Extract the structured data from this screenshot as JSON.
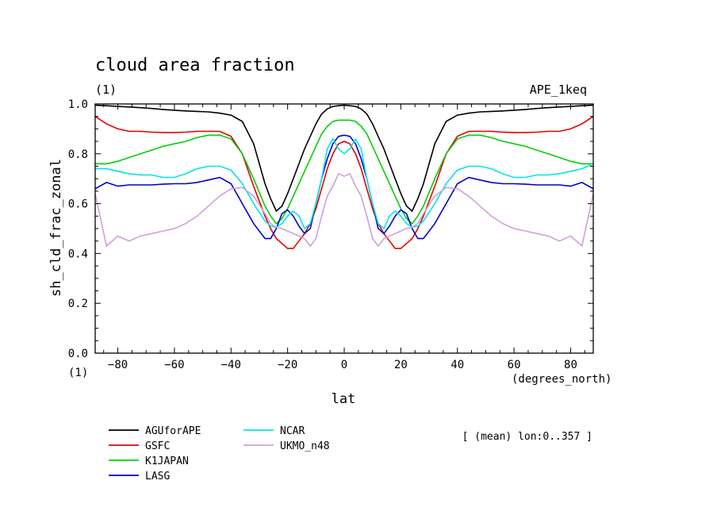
{
  "chart_data": {
    "type": "line",
    "title": "cloud area fraction",
    "units_label": "(1)",
    "experiment": "APE_1keq",
    "xlabel": "lat",
    "x_units": "(degrees_north)",
    "ylabel": "sh_cld_frac_zonal",
    "y_units": "(1)",
    "note": "[ (mean) lon:0..357 ]",
    "xlim": [
      -88,
      88
    ],
    "ylim": [
      0,
      1
    ],
    "x_ticks": [
      -80,
      -60,
      -40,
      -20,
      0,
      20,
      40,
      60,
      80
    ],
    "x_tick_labels": [
      "−80",
      "−60",
      "−40",
      "−20",
      "0",
      "20",
      "40",
      "60",
      "80"
    ],
    "y_ticks": [
      0,
      0.2,
      0.4,
      0.6,
      0.8,
      1.0
    ],
    "y_tick_labels": [
      "0.0",
      "0.2",
      "0.4",
      "0.6",
      "0.8",
      "1.0"
    ],
    "x": [
      -88,
      -84,
      -80,
      -76,
      -72,
      -68,
      -64,
      -60,
      -56,
      -52,
      -48,
      -44,
      -40,
      -36,
      -32,
      -28,
      -26,
      -24,
      -22,
      -20,
      -18,
      -16,
      -14,
      -12,
      -10,
      -8,
      -6,
      -4,
      -2,
      0,
      2,
      4,
      6,
      8,
      10,
      12,
      14,
      16,
      18,
      20,
      22,
      24,
      26,
      28,
      32,
      36,
      40,
      44,
      48,
      52,
      56,
      60,
      64,
      68,
      72,
      76,
      80,
      84,
      88
    ],
    "series": [
      {
        "name": "AGUforAPE",
        "color": "#000000",
        "values": [
          0.995,
          0.993,
          0.99,
          0.988,
          0.985,
          0.982,
          0.978,
          0.975,
          0.972,
          0.97,
          0.968,
          0.963,
          0.955,
          0.93,
          0.84,
          0.68,
          0.62,
          0.57,
          0.59,
          0.64,
          0.7,
          0.76,
          0.82,
          0.87,
          0.92,
          0.96,
          0.98,
          0.99,
          0.993,
          0.995,
          0.993,
          0.99,
          0.98,
          0.96,
          0.92,
          0.87,
          0.82,
          0.76,
          0.7,
          0.64,
          0.59,
          0.57,
          0.62,
          0.68,
          0.84,
          0.93,
          0.955,
          0.963,
          0.968,
          0.97,
          0.972,
          0.975,
          0.978,
          0.982,
          0.985,
          0.988,
          0.99,
          0.993,
          0.995
        ]
      },
      {
        "name": "GSFC",
        "color": "#e00000",
        "values": [
          0.95,
          0.92,
          0.9,
          0.89,
          0.89,
          0.887,
          0.885,
          0.885,
          0.887,
          0.89,
          0.89,
          0.89,
          0.87,
          0.8,
          0.67,
          0.55,
          0.5,
          0.46,
          0.44,
          0.42,
          0.42,
          0.45,
          0.48,
          0.52,
          0.58,
          0.66,
          0.74,
          0.8,
          0.84,
          0.85,
          0.84,
          0.8,
          0.74,
          0.66,
          0.58,
          0.52,
          0.48,
          0.45,
          0.42,
          0.42,
          0.44,
          0.46,
          0.5,
          0.55,
          0.67,
          0.8,
          0.87,
          0.89,
          0.89,
          0.89,
          0.887,
          0.885,
          0.885,
          0.887,
          0.89,
          0.89,
          0.9,
          0.92,
          0.95
        ]
      },
      {
        "name": "K1JAPAN",
        "color": "#00d000",
        "values": [
          0.76,
          0.76,
          0.77,
          0.785,
          0.8,
          0.815,
          0.83,
          0.84,
          0.85,
          0.865,
          0.875,
          0.875,
          0.86,
          0.8,
          0.7,
          0.59,
          0.55,
          0.52,
          0.54,
          0.58,
          0.63,
          0.68,
          0.73,
          0.78,
          0.83,
          0.88,
          0.91,
          0.93,
          0.935,
          0.935,
          0.935,
          0.93,
          0.91,
          0.88,
          0.83,
          0.78,
          0.73,
          0.68,
          0.63,
          0.58,
          0.54,
          0.52,
          0.55,
          0.59,
          0.7,
          0.8,
          0.86,
          0.875,
          0.875,
          0.865,
          0.85,
          0.84,
          0.83,
          0.815,
          0.8,
          0.785,
          0.77,
          0.76,
          0.76
        ]
      },
      {
        "name": "LASG",
        "color": "#0000d0",
        "values": [
          0.66,
          0.685,
          0.67,
          0.675,
          0.675,
          0.675,
          0.678,
          0.68,
          0.68,
          0.685,
          0.695,
          0.705,
          0.68,
          0.6,
          0.52,
          0.46,
          0.46,
          0.5,
          0.56,
          0.575,
          0.55,
          0.51,
          0.48,
          0.5,
          0.6,
          0.7,
          0.78,
          0.84,
          0.87,
          0.875,
          0.87,
          0.84,
          0.78,
          0.7,
          0.6,
          0.5,
          0.48,
          0.51,
          0.55,
          0.575,
          0.56,
          0.5,
          0.46,
          0.46,
          0.52,
          0.6,
          0.68,
          0.705,
          0.695,
          0.685,
          0.68,
          0.68,
          0.678,
          0.675,
          0.675,
          0.675,
          0.67,
          0.685,
          0.66
        ]
      },
      {
        "name": "NCAR",
        "color": "#00e6e6",
        "values": [
          0.74,
          0.74,
          0.73,
          0.72,
          0.715,
          0.715,
          0.705,
          0.705,
          0.72,
          0.74,
          0.75,
          0.75,
          0.735,
          0.68,
          0.6,
          0.53,
          0.51,
          0.505,
          0.52,
          0.55,
          0.57,
          0.55,
          0.5,
          0.52,
          0.6,
          0.7,
          0.82,
          0.86,
          0.82,
          0.8,
          0.82,
          0.86,
          0.82,
          0.7,
          0.6,
          0.52,
          0.5,
          0.55,
          0.57,
          0.55,
          0.52,
          0.505,
          0.51,
          0.53,
          0.6,
          0.68,
          0.735,
          0.75,
          0.75,
          0.74,
          0.72,
          0.705,
          0.705,
          0.715,
          0.715,
          0.72,
          0.73,
          0.74,
          0.76
        ]
      },
      {
        "name": "UKMO_n48",
        "color": "#d0a0d8",
        "values": [
          0.64,
          0.43,
          0.47,
          0.45,
          0.47,
          0.48,
          0.49,
          0.5,
          0.52,
          0.55,
          0.59,
          0.63,
          0.66,
          0.665,
          0.63,
          0.56,
          0.52,
          0.505,
          0.5,
          0.49,
          0.48,
          0.47,
          0.46,
          0.43,
          0.46,
          0.55,
          0.63,
          0.67,
          0.72,
          0.71,
          0.72,
          0.67,
          0.63,
          0.55,
          0.46,
          0.43,
          0.46,
          0.47,
          0.48,
          0.49,
          0.5,
          0.505,
          0.52,
          0.56,
          0.63,
          0.665,
          0.66,
          0.63,
          0.59,
          0.55,
          0.52,
          0.5,
          0.49,
          0.48,
          0.47,
          0.45,
          0.47,
          0.43,
          0.64
        ]
      }
    ]
  }
}
